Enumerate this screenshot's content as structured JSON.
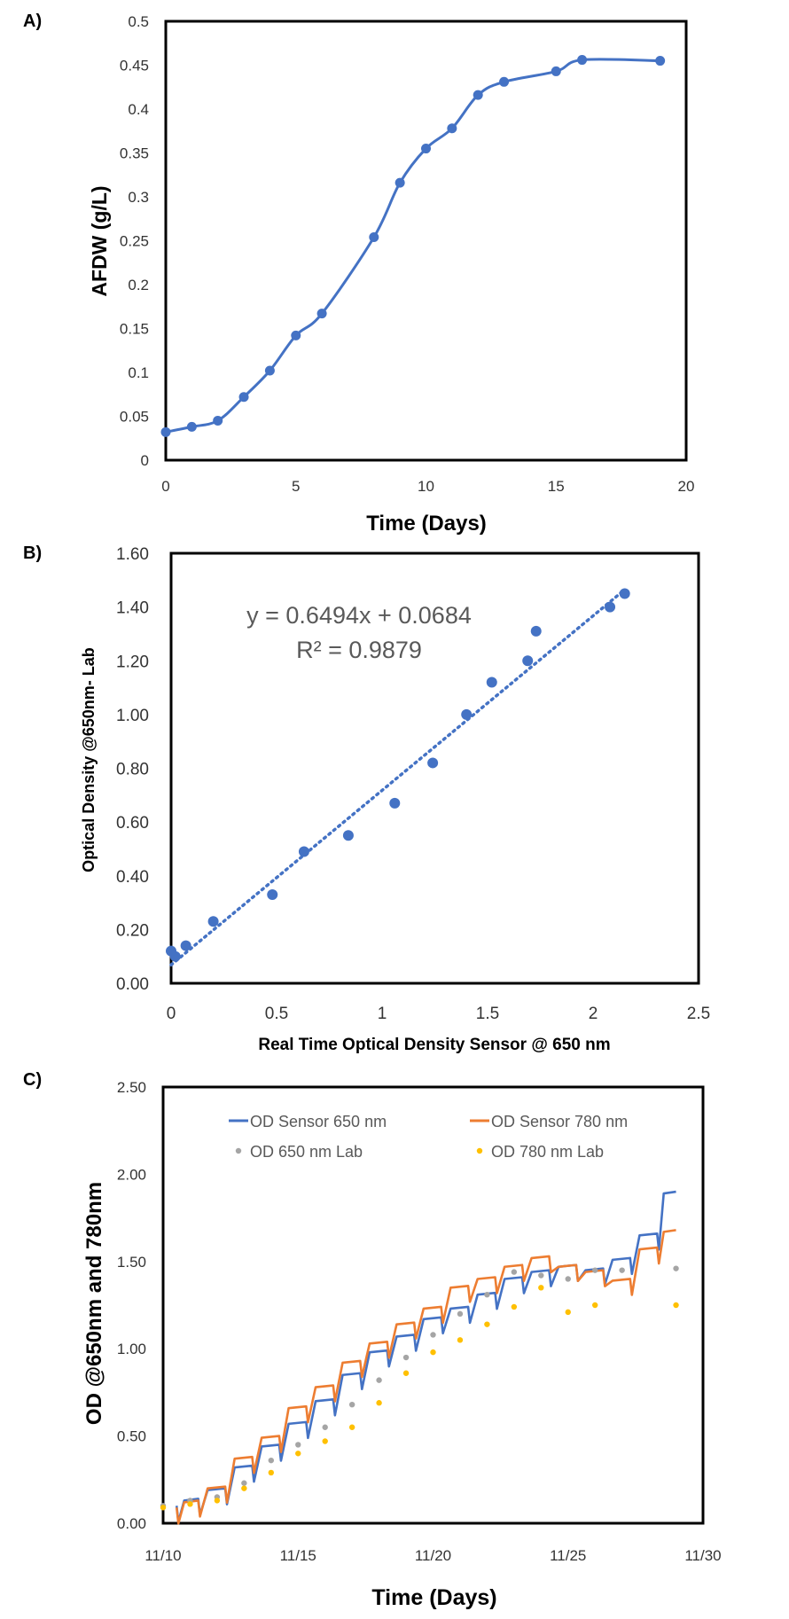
{
  "chart_data": [
    {
      "panel": "A)",
      "type": "line",
      "xlabel": "Time (Days)",
      "ylabel": "AFDW (g/L)",
      "xlim": [
        0,
        20
      ],
      "ylim": [
        0,
        0.5
      ],
      "xticks": [
        "0",
        "5",
        "10",
        "15",
        "20"
      ],
      "yticks": [
        "0",
        "0.05",
        "0.1",
        "0.15",
        "0.2",
        "0.25",
        "0.3",
        "0.35",
        "0.4",
        "0.45",
        "0.5"
      ],
      "color": "#4472C4",
      "x": [
        0,
        1,
        2,
        3,
        4,
        5,
        6,
        8,
        9,
        10,
        11,
        12,
        13,
        15,
        16,
        19
      ],
      "y": [
        0.032,
        0.038,
        0.045,
        0.072,
        0.102,
        0.142,
        0.167,
        0.254,
        0.316,
        0.355,
        0.378,
        0.416,
        0.431,
        0.443,
        0.456,
        0.455
      ]
    },
    {
      "panel": "B)",
      "type": "scatter",
      "xlabel": "Real Time Optical Density Sensor @ 650 nm",
      "ylabel": "Optical Density @650nm- Lab",
      "xlim": [
        0,
        2.5
      ],
      "ylim": [
        0,
        1.6
      ],
      "xticks": [
        "0",
        "0.5",
        "1",
        "1.5",
        "2",
        "2.5"
      ],
      "yticks": [
        "0.00",
        "0.20",
        "0.40",
        "0.60",
        "0.80",
        "1.00",
        "1.20",
        "1.40",
        "1.60"
      ],
      "color": "#4472C4",
      "x": [
        0.0,
        0.02,
        0.07,
        0.2,
        0.48,
        0.63,
        0.84,
        1.06,
        1.24,
        1.4,
        1.52,
        1.69,
        1.73,
        2.08,
        2.15
      ],
      "y": [
        0.12,
        0.1,
        0.14,
        0.23,
        0.33,
        0.49,
        0.55,
        0.67,
        0.82,
        1.0,
        1.12,
        1.2,
        1.31,
        1.4,
        1.45
      ],
      "trendline": {
        "slope": 0.6494,
        "intercept": 0.0684,
        "x_range": [
          0,
          2.15
        ]
      },
      "equation": "y = 0.6494x + 0.0684",
      "r_squared": "R² = 0.9879"
    },
    {
      "panel": "C)",
      "type": "line",
      "xlabel": "Time (Days)",
      "ylabel": "OD  @650nm and 780nm",
      "xlim": [
        0,
        20
      ],
      "ylim": [
        0,
        2.5
      ],
      "xticks": [
        "11/10",
        "11/15",
        "11/20",
        "11/25",
        "11/30"
      ],
      "yticks": [
        "0.00",
        "0.50",
        "1.00",
        "1.50",
        "2.00",
        "2.50"
      ],
      "series": [
        {
          "name": "OD Sensor 650 nm",
          "kind": "line",
          "color": "#4472C4",
          "x": [
            0.5,
            1.3,
            2.3,
            3.3,
            4.3,
            5.3,
            6.3,
            7.3,
            8.3,
            9.3,
            10.3,
            11.3,
            12.3,
            13.3,
            14.3,
            15.3,
            16.3,
            17.3,
            18.3,
            19.0
          ],
          "y": [
            0.1,
            0.14,
            0.2,
            0.33,
            0.45,
            0.58,
            0.71,
            0.86,
            0.99,
            1.08,
            1.18,
            1.24,
            1.32,
            1.41,
            1.45,
            1.48,
            1.46,
            1.52,
            1.66,
            1.9
          ]
        },
        {
          "name": "OD Sensor 780 nm",
          "kind": "line",
          "color": "#ED7D31",
          "x": [
            0.5,
            1.3,
            2.3,
            3.3,
            4.3,
            5.3,
            6.3,
            7.3,
            8.3,
            9.3,
            10.3,
            11.3,
            12.3,
            13.3,
            14.3,
            15.3,
            16.3,
            17.3,
            18.3,
            19.0
          ],
          "y": [
            0.09,
            0.13,
            0.21,
            0.38,
            0.5,
            0.67,
            0.79,
            0.93,
            1.04,
            1.15,
            1.24,
            1.36,
            1.41,
            1.48,
            1.53,
            1.48,
            1.45,
            1.4,
            1.58,
            1.68
          ]
        },
        {
          "name": "OD 650 nm Lab",
          "kind": "points",
          "color": "#A5A5A5",
          "x": [
            0,
            1,
            2,
            3,
            4,
            5,
            6,
            7,
            8,
            9,
            10,
            11,
            12,
            13,
            14,
            15,
            16,
            17,
            19
          ],
          "y": [
            0.1,
            0.13,
            0.15,
            0.23,
            0.36,
            0.45,
            0.55,
            0.68,
            0.82,
            0.95,
            1.08,
            1.2,
            1.31,
            1.44,
            1.42,
            1.4,
            1.45,
            1.45,
            1.46
          ]
        },
        {
          "name": "OD 780 nm Lab",
          "kind": "points",
          "color": "#FFC000",
          "x": [
            0,
            1,
            2,
            3,
            4,
            5,
            6,
            7,
            8,
            9,
            10,
            11,
            12,
            13,
            14,
            15,
            16,
            19
          ],
          "y": [
            0.09,
            0.11,
            0.13,
            0.2,
            0.29,
            0.4,
            0.47,
            0.55,
            0.69,
            0.86,
            0.98,
            1.05,
            1.14,
            1.24,
            1.35,
            1.21,
            1.25,
            1.25
          ]
        }
      ]
    }
  ]
}
